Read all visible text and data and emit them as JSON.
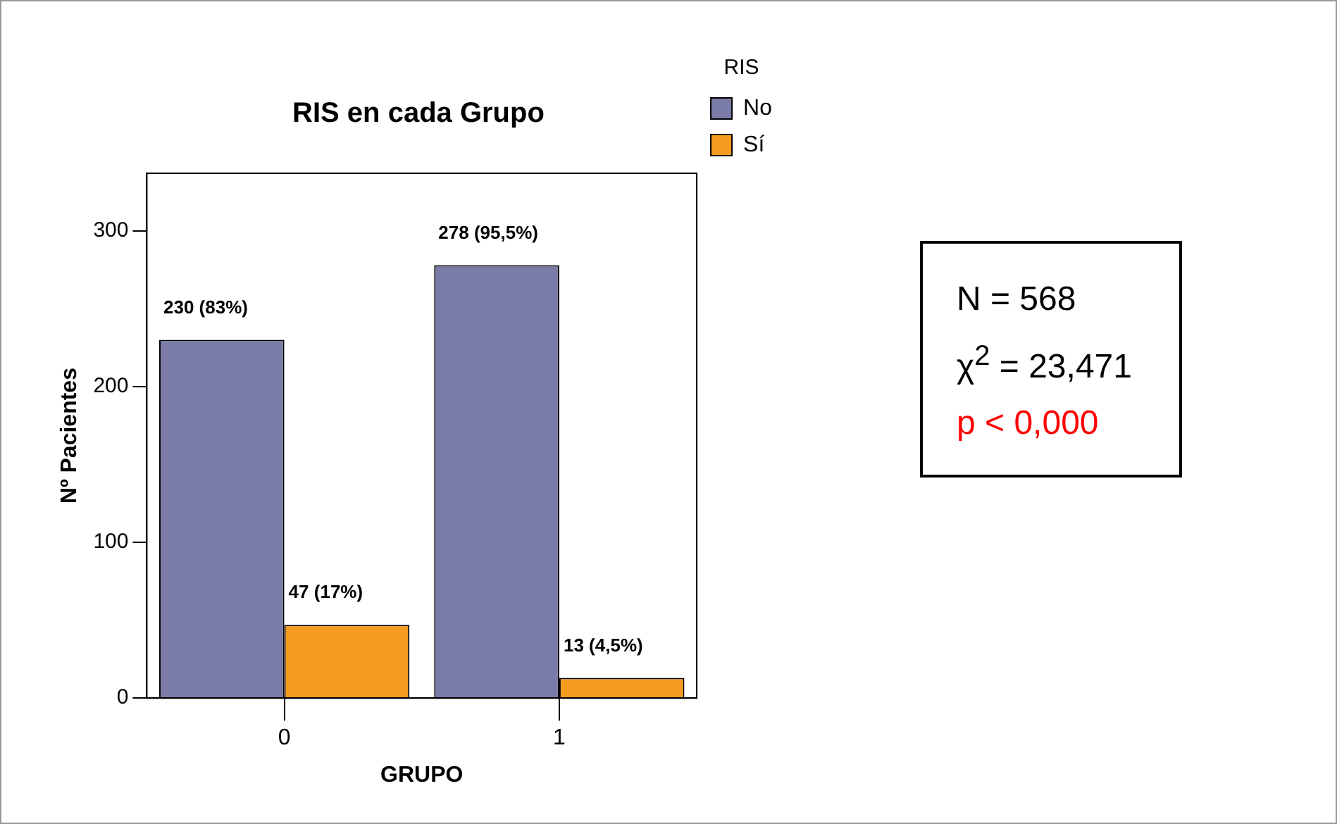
{
  "chart_data": {
    "type": "bar",
    "title": "RIS en cada Grupo",
    "xlabel": "GRUPO",
    "ylabel": "Nº Pacientes",
    "legend_title": "RIS",
    "legend": "top right",
    "categories": [
      "0",
      "1"
    ],
    "series": [
      {
        "name": "No",
        "color": "#7b7ba8",
        "values": [
          230,
          278
        ],
        "value_labels": [
          "230 (83%)",
          "278 (95,5%)"
        ]
      },
      {
        "name": "Sí",
        "color": "#f59b1f",
        "values": [
          47,
          13
        ],
        "value_labels": [
          "47 (17%)",
          "13 (4,5%)"
        ]
      }
    ],
    "ylim": [
      0,
      337
    ],
    "yticks": [
      0,
      100,
      200,
      300
    ],
    "grid": false,
    "annotations": [
      "N = 568",
      "χ$^{2}$ = 23,471",
      "p < 0,000"
    ]
  }
}
